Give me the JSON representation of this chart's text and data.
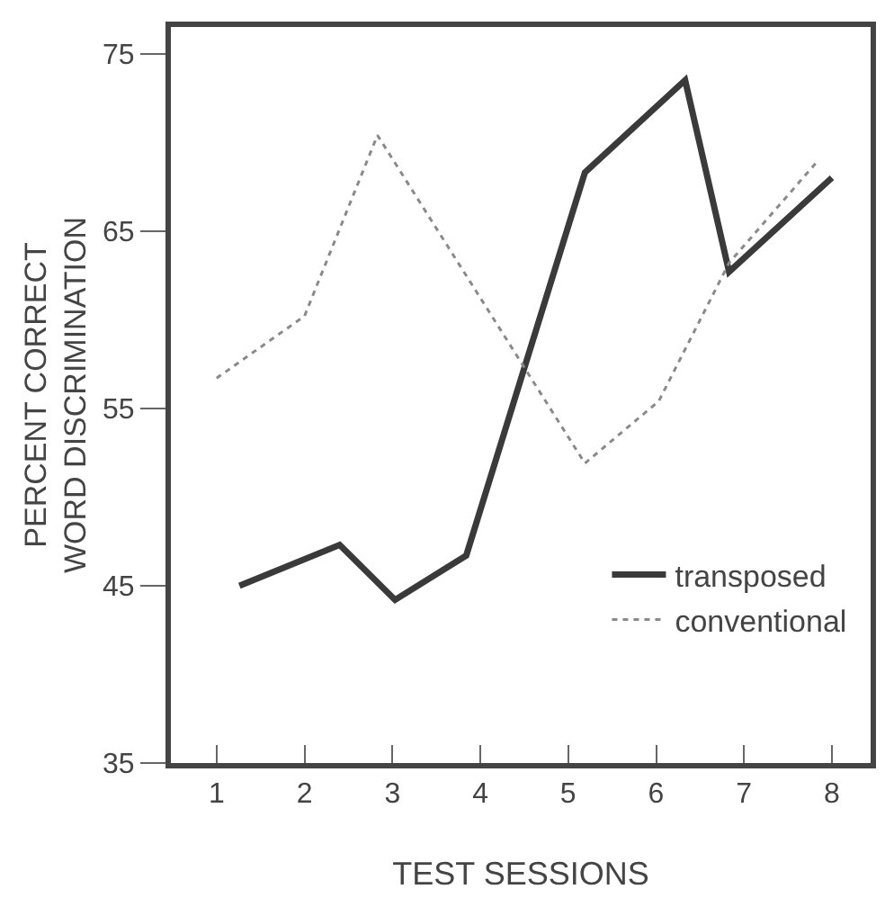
{
  "chart_data": {
    "type": "line",
    "xlabel": "TEST SESSIONS",
    "ylabel": "PERCENT CORRECT\nWORD DISCRIMINATION",
    "xlim": [
      0.48,
      8.44
    ],
    "xticks": [
      1,
      2,
      3,
      4,
      5,
      6,
      7,
      8
    ],
    "ylim": [
      35,
      76.5
    ],
    "yticks": [
      35,
      45,
      55,
      65,
      75
    ],
    "legend": "bottom right",
    "series": [
      {
        "name": "transposed",
        "color": "#3a3a3a",
        "line_style": "solid",
        "x": [
          1.26,
          2.4,
          3.03,
          3.84,
          5.19,
          6.33,
          6.83,
          8.0
        ],
        "values": [
          45.0,
          47.3,
          44.2,
          46.7,
          68.3,
          73.5,
          62.7,
          68.0
        ]
      },
      {
        "name": "conventional",
        "color": "#8a8a8a",
        "line_style": "dotted",
        "x": [
          1.0,
          2.0,
          2.83,
          5.19,
          6.03,
          6.83,
          7.83
        ],
        "values": [
          56.7,
          60.2,
          70.4,
          51.9,
          55.4,
          63.2,
          68.9
        ]
      }
    ]
  }
}
